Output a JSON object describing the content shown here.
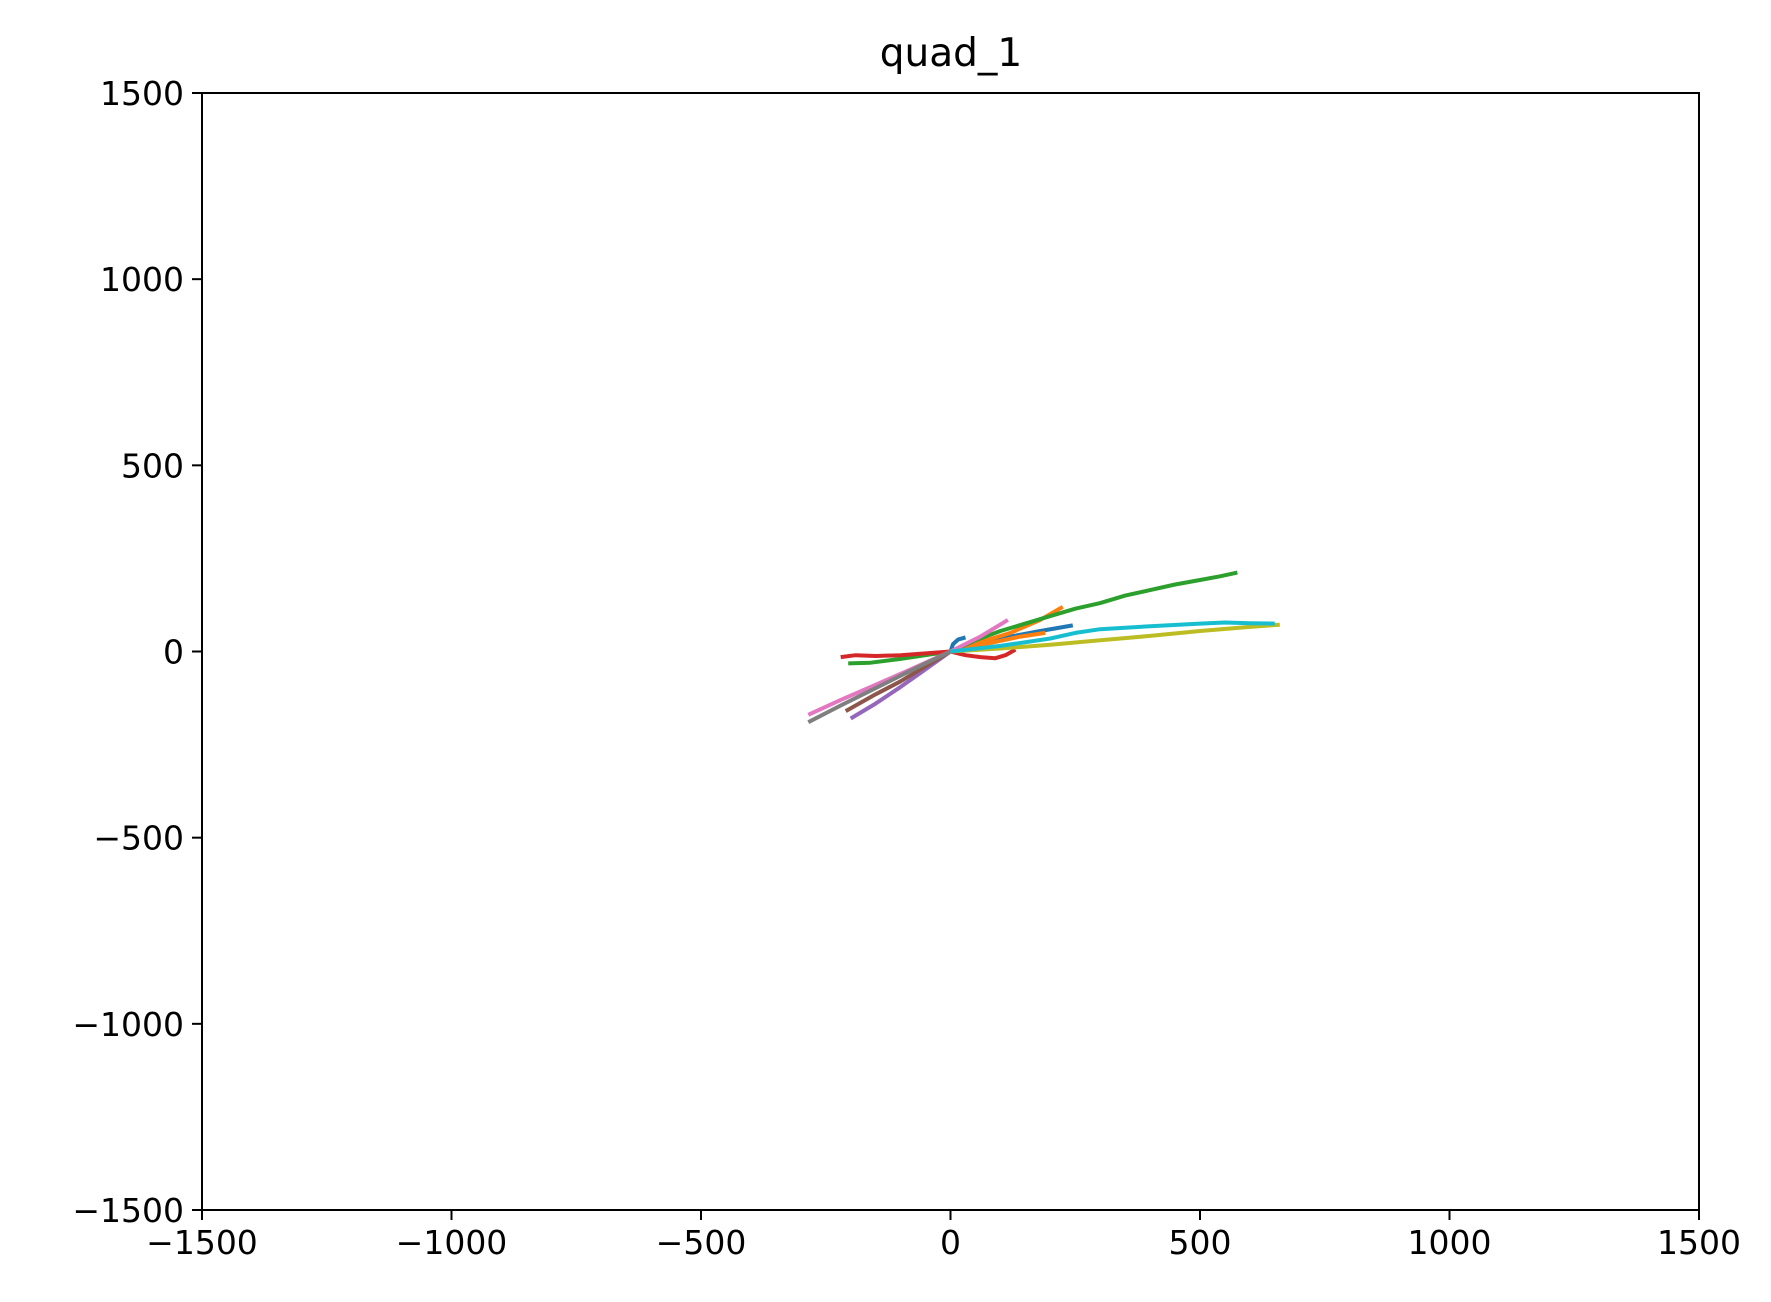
{
  "chart_data": {
    "type": "line",
    "title": "quad_1",
    "xlabel": "",
    "ylabel": "",
    "xlim": [
      -1500,
      1500
    ],
    "ylim": [
      -1500,
      1500
    ],
    "xticks": [
      -1500,
      -1000,
      -500,
      0,
      500,
      1000,
      1500
    ],
    "yticks": [
      -1500,
      -1000,
      -500,
      0,
      500,
      1000,
      1500
    ],
    "xtick_labels": [
      "−1500",
      "−1000",
      "−500",
      "0",
      "500",
      "1000",
      "1500"
    ],
    "ytick_labels": [
      "−1500",
      "−1000",
      "−500",
      "0",
      "500",
      "1000",
      "1500"
    ],
    "grid": false,
    "legend": "none",
    "series": [
      {
        "color": "#1f77b4",
        "x": [
          0,
          5,
          15,
          30
        ],
        "y": [
          0,
          20,
          32,
          38
        ]
      },
      {
        "color": "#1f77b4",
        "x": [
          0,
          60,
          120,
          180,
          245
        ],
        "y": [
          0,
          22,
          40,
          55,
          70
        ]
      },
      {
        "color": "#ff7f0e",
        "x": [
          0,
          60,
          120,
          180,
          225
        ],
        "y": [
          0,
          25,
          50,
          85,
          120
        ]
      },
      {
        "color": "#ff7f0e",
        "x": [
          0,
          70,
          140,
          190
        ],
        "y": [
          0,
          20,
          40,
          50
        ]
      },
      {
        "color": "#2ca02c",
        "x": [
          -205,
          -160,
          -100,
          -50,
          0,
          50,
          100,
          150,
          200,
          250,
          300,
          350,
          400,
          450,
          500,
          540,
          575
        ],
        "y": [
          -32,
          -30,
          -20,
          -10,
          0,
          30,
          55,
          75,
          95,
          115,
          130,
          150,
          165,
          180,
          192,
          202,
          212
        ]
      },
      {
        "color": "#d62728",
        "x": [
          -220,
          -190,
          -150,
          -100,
          -50,
          0,
          30,
          60,
          90,
          110,
          130
        ],
        "y": [
          -15,
          -10,
          -12,
          -10,
          -5,
          0,
          -10,
          -15,
          -18,
          -10,
          5
        ]
      },
      {
        "color": "#9467bd",
        "x": [
          -200,
          -150,
          -100,
          -50,
          0
        ],
        "y": [
          -180,
          -140,
          -95,
          -48,
          0
        ]
      },
      {
        "color": "#8c564b",
        "x": [
          -210,
          -150,
          -100,
          -50,
          0
        ],
        "y": [
          -160,
          -115,
          -80,
          -40,
          0
        ]
      },
      {
        "color": "#e377c2",
        "x": [
          -285,
          -220,
          -160,
          -100,
          -50,
          0,
          60,
          115
        ],
        "y": [
          -170,
          -130,
          -95,
          -60,
          -30,
          0,
          40,
          85
        ]
      },
      {
        "color": "#7f7f7f",
        "x": [
          -285,
          -220,
          -160,
          -100,
          -50,
          0
        ],
        "y": [
          -190,
          -145,
          -105,
          -65,
          -32,
          0
        ]
      },
      {
        "color": "#bcbd22",
        "x": [
          0,
          100,
          200,
          300,
          400,
          500,
          600,
          660
        ],
        "y": [
          0,
          8,
          18,
          30,
          42,
          55,
          66,
          72
        ]
      },
      {
        "color": "#17becf",
        "x": [
          0,
          100,
          200,
          250,
          300,
          400,
          500,
          550,
          600,
          650
        ],
        "y": [
          0,
          15,
          35,
          50,
          60,
          68,
          75,
          78,
          76,
          75
        ]
      }
    ]
  }
}
